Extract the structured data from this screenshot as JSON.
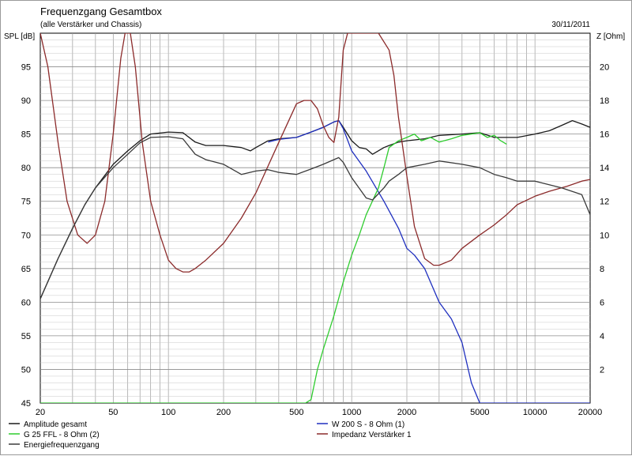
{
  "chart_data": {
    "type": "line",
    "title": "Frequenzgang Gesamtbox",
    "subtitle": "(alle Verstärker und Chassis)",
    "date": "30/11/2011",
    "ylabel_left": "SPL [dB]",
    "ylabel_right": "Z [Ohm]",
    "x_scale": "log",
    "xlim": [
      20,
      20000
    ],
    "ylim_left": [
      45,
      100
    ],
    "ylim_right": [
      0,
      22
    ],
    "grid": true,
    "x_ticks": [
      20,
      50,
      100,
      200,
      500,
      1000,
      2000,
      5000,
      10000,
      20000
    ],
    "x_tick_labels": [
      "20",
      "50",
      "100",
      "200",
      "500",
      "1000",
      "2000",
      "5000",
      "10000",
      "20000"
    ],
    "y_left_ticks": [
      45,
      50,
      55,
      60,
      65,
      70,
      75,
      80,
      85,
      90,
      95
    ],
    "y_left_tick_labels": [
      "45",
      "50",
      "55",
      "60",
      "65",
      "70",
      "75",
      "80",
      "85",
      "90",
      "95"
    ],
    "y_right_ticks": [
      2,
      4,
      6,
      8,
      10,
      12,
      14,
      16,
      18,
      20
    ],
    "y_right_tick_labels": [
      "2",
      "4",
      "6",
      "8",
      "10",
      "12",
      "14",
      "16",
      "18",
      "20"
    ],
    "legend_position": "bottom",
    "series": [
      {
        "name": "Amplitude gesamt",
        "axis": "left",
        "color": "#1a1a1a",
        "x": [
          20,
          25,
          30,
          35,
          40,
          50,
          60,
          70,
          80,
          100,
          120,
          140,
          160,
          200,
          250,
          280,
          300,
          350,
          400,
          500,
          600,
          700,
          800,
          850,
          900,
          1000,
          1100,
          1200,
          1300,
          1500,
          1600,
          1800,
          2000,
          2500,
          3000,
          4000,
          5000,
          6000,
          7000,
          8000,
          10000,
          12000,
          14000,
          16000,
          18000,
          20000
        ],
        "y": [
          60.5,
          66.5,
          71,
          74.5,
          77,
          80.5,
          82.5,
          84,
          85,
          85.3,
          85.2,
          83.8,
          83.3,
          83.3,
          83,
          82.5,
          83,
          84,
          84.3,
          84.5,
          85.3,
          86,
          86.8,
          87,
          86,
          84,
          83,
          82.8,
          82,
          83,
          83.3,
          83.8,
          84,
          84.3,
          84.8,
          85,
          85.2,
          84.5,
          84.5,
          84.5,
          85,
          85.5,
          86.3,
          87,
          86.5,
          86
        ]
      },
      {
        "name": "W 200 S - 8 Ohm (1)",
        "axis": "left",
        "color": "#1f2fbf",
        "x": [
          350,
          400,
          500,
          600,
          700,
          800,
          850,
          900,
          1000,
          1200,
          1500,
          1800,
          2000,
          2200,
          2500,
          3000,
          3500,
          4000,
          4500,
          5000,
          6000,
          8000,
          10000,
          14000,
          20000
        ],
        "y": [
          83.8,
          84.2,
          84.5,
          85.3,
          86,
          86.8,
          87,
          85.8,
          82.5,
          79.5,
          75,
          71,
          68,
          67,
          65,
          60,
          57.5,
          54,
          48,
          45,
          45,
          45,
          45,
          45,
          45
        ]
      },
      {
        "name": "G 25 FFL - 8 Ohm (2)",
        "axis": "left",
        "color": "#2ecc2e",
        "x": [
          20,
          100,
          300,
          500,
          560,
          600,
          650,
          700,
          800,
          900,
          1000,
          1100,
          1200,
          1400,
          1500,
          1600,
          1800,
          2000,
          2200,
          2400,
          2700,
          3000,
          3500,
          4000,
          4500,
          5000,
          5500,
          6000,
          6500,
          7000
        ],
        "y": [
          45,
          45,
          45,
          45,
          45,
          45.5,
          50,
          53,
          58,
          63,
          67,
          70,
          73,
          77,
          80,
          83,
          84,
          84.5,
          85,
          84,
          84.5,
          83.8,
          84.3,
          84.8,
          85,
          85.2,
          84.5,
          84.8,
          84,
          83.5
        ]
      },
      {
        "name": "Impedanz Verstärker 1",
        "axis": "right",
        "color": "#8b2a2a",
        "x": [
          20,
          22,
          25,
          28,
          32,
          36,
          40,
          45,
          50,
          55,
          58,
          60,
          62,
          66,
          72,
          80,
          90,
          100,
          110,
          120,
          130,
          140,
          160,
          200,
          250,
          300,
          400,
          500,
          550,
          600,
          650,
          700,
          750,
          800,
          850,
          900,
          950,
          1000,
          1100,
          1200,
          1400,
          1600,
          1700,
          1800,
          2000,
          2200,
          2500,
          2800,
          3000,
          3500,
          4000,
          5000,
          6000,
          7000,
          8000,
          10000,
          12000,
          15000,
          18000,
          20000
        ],
        "y": [
          22,
          20,
          15.5,
          12,
          10,
          9.5,
          10,
          12,
          16,
          20.5,
          22,
          22,
          22,
          20,
          15.5,
          12,
          10,
          8.5,
          8,
          7.8,
          7.8,
          8,
          8.5,
          9.5,
          11,
          12.5,
          15.5,
          17.8,
          18,
          18,
          17.5,
          16.5,
          15.8,
          15.5,
          17,
          21,
          22,
          22,
          22,
          22,
          22,
          21,
          19.5,
          17,
          13.5,
          10.5,
          8.6,
          8.2,
          8.2,
          8.5,
          9.2,
          10,
          10.6,
          11.2,
          11.8,
          12.3,
          12.6,
          12.9,
          13.2,
          13.3
        ]
      },
      {
        "name": "Energiefrequenzgang",
        "axis": "left",
        "color": "#3a3a3a",
        "x": [
          20,
          25,
          30,
          35,
          40,
          50,
          60,
          70,
          80,
          100,
          120,
          140,
          160,
          200,
          250,
          300,
          350,
          400,
          500,
          600,
          700,
          800,
          850,
          900,
          1000,
          1200,
          1300,
          1500,
          1600,
          1800,
          2000,
          2500,
          3000,
          4000,
          5000,
          6000,
          7000,
          8000,
          10000,
          14000,
          18000,
          20000
        ],
        "y": [
          60.5,
          66.5,
          71,
          74.5,
          77,
          80,
          82,
          83.7,
          84.5,
          84.6,
          84.3,
          82,
          81.2,
          80.5,
          79,
          79.5,
          79.7,
          79.3,
          79,
          79.8,
          80.5,
          81.2,
          81.5,
          80.8,
          78.5,
          75.5,
          75.2,
          77,
          78,
          79,
          80,
          80.5,
          81,
          80.5,
          80,
          79,
          78.5,
          78,
          78,
          77,
          76,
          73
        ]
      }
    ]
  }
}
